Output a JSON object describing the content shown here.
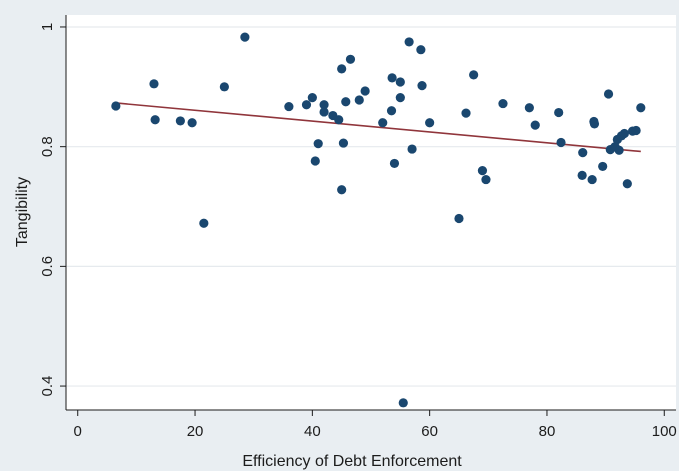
{
  "chart_data": {
    "type": "scatter",
    "title": "",
    "xlabel": "Efficiency of Debt Enforcement",
    "ylabel": "Tangibility",
    "xlim": [
      -2,
      102
    ],
    "ylim": [
      0.36,
      1.02
    ],
    "x_ticks": [
      0,
      20,
      40,
      60,
      80,
      100
    ],
    "x_tick_labels": [
      "0",
      "20",
      "40",
      "60",
      "80",
      "100"
    ],
    "y_ticks": [
      0.4,
      0.6,
      0.8,
      1.0
    ],
    "y_tick_labels": [
      "0.4",
      "0.6",
      "0.8",
      "1"
    ],
    "grid": "horizontal",
    "legend": "none",
    "colors": {
      "background": "#e9eef2",
      "plot_area": "#ffffff",
      "gridline": "#e6eaee",
      "axis": "#1a1a1a",
      "marker": "#1a476f",
      "fit_line": "#90353b"
    },
    "points": [
      [
        6.5,
        0.868
      ],
      [
        13,
        0.905
      ],
      [
        13.2,
        0.845
      ],
      [
        17.5,
        0.843
      ],
      [
        19.5,
        0.84
      ],
      [
        21.5,
        0.672
      ],
      [
        25,
        0.9
      ],
      [
        28.5,
        0.983
      ],
      [
        36,
        0.867
      ],
      [
        39,
        0.87
      ],
      [
        40,
        0.882
      ],
      [
        40.5,
        0.776
      ],
      [
        41,
        0.805
      ],
      [
        42,
        0.87
      ],
      [
        42,
        0.858
      ],
      [
        43.5,
        0.852
      ],
      [
        44.5,
        0.845
      ],
      [
        45,
        0.93
      ],
      [
        45,
        0.728
      ],
      [
        45.3,
        0.806
      ],
      [
        45.7,
        0.875
      ],
      [
        46.5,
        0.946
      ],
      [
        48,
        0.878
      ],
      [
        49,
        0.893
      ],
      [
        52,
        0.84
      ],
      [
        53.5,
        0.86
      ],
      [
        53.6,
        0.915
      ],
      [
        54,
        0.772
      ],
      [
        55,
        0.908
      ],
      [
        55,
        0.882
      ],
      [
        55.5,
        0.372
      ],
      [
        56.5,
        0.975
      ],
      [
        57,
        0.796
      ],
      [
        58.5,
        0.962
      ],
      [
        58.7,
        0.902
      ],
      [
        60,
        0.84
      ],
      [
        65,
        0.68
      ],
      [
        66.2,
        0.856
      ],
      [
        67.5,
        0.92
      ],
      [
        69,
        0.76
      ],
      [
        69.6,
        0.745
      ],
      [
        72.5,
        0.872
      ],
      [
        77,
        0.865
      ],
      [
        78,
        0.836
      ],
      [
        82,
        0.857
      ],
      [
        82.4,
        0.807
      ],
      [
        86,
        0.752
      ],
      [
        86.1,
        0.79
      ],
      [
        87.7,
        0.745
      ],
      [
        88,
        0.842
      ],
      [
        88.1,
        0.838
      ],
      [
        89.5,
        0.767
      ],
      [
        90.5,
        0.888
      ],
      [
        90.8,
        0.795
      ],
      [
        91.6,
        0.8
      ],
      [
        92,
        0.812
      ],
      [
        92.3,
        0.794
      ],
      [
        92.7,
        0.818
      ],
      [
        93.2,
        0.822
      ],
      [
        93.7,
        0.738
      ],
      [
        94.6,
        0.826
      ],
      [
        95.2,
        0.827
      ],
      [
        96,
        0.865
      ]
    ],
    "fit_line": {
      "x": [
        6.5,
        96
      ],
      "y": [
        0.873,
        0.792
      ]
    }
  }
}
